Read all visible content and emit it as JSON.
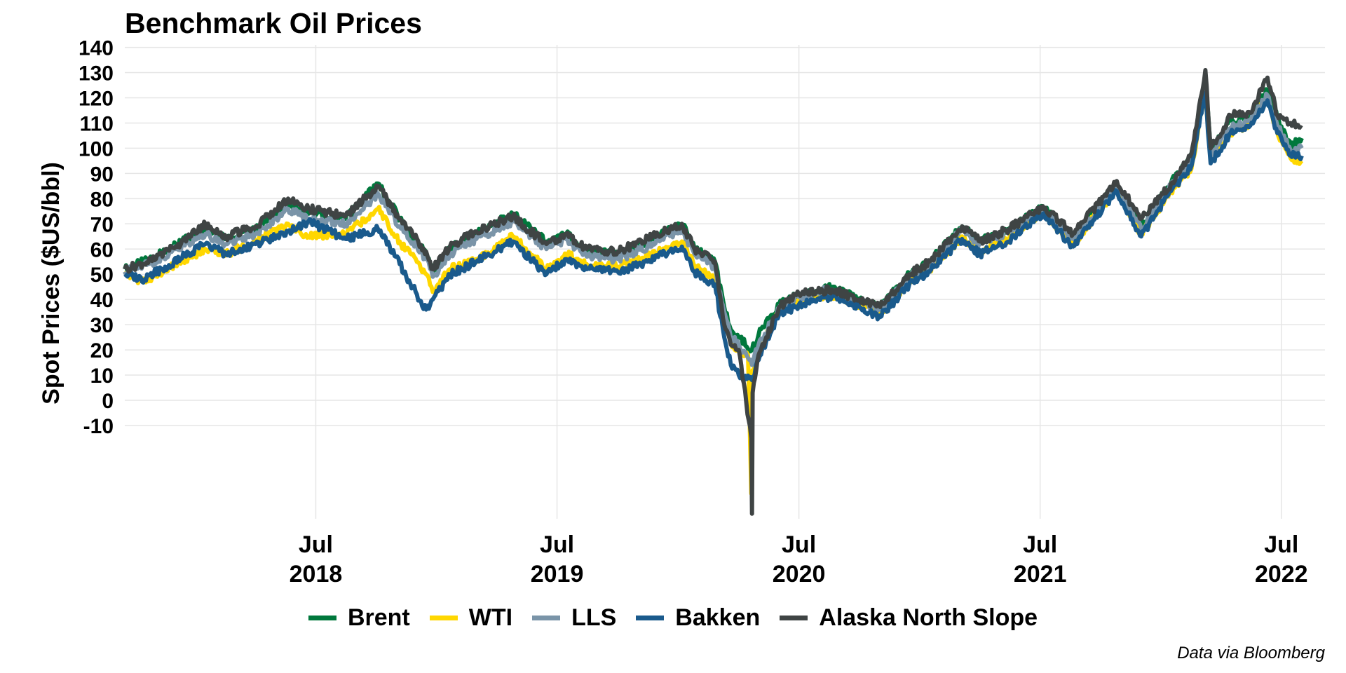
{
  "chart_data": {
    "type": "line",
    "title": "Benchmark Oil Prices",
    "ylabel": "Spot Prices ($US/bbl)",
    "xlabel": "",
    "caption": "Data via Bloomberg",
    "ylim": [
      -47,
      141
    ],
    "xlim": [
      "2017-09-15",
      "2022-09-05"
    ],
    "y_ticks": [
      -10,
      0,
      10,
      20,
      30,
      40,
      50,
      60,
      70,
      80,
      90,
      100,
      110,
      120,
      130,
      140
    ],
    "x_ticks": [
      {
        "date": "2018-07-01",
        "line1": "Jul",
        "line2": "2018"
      },
      {
        "date": "2019-07-01",
        "line1": "Jul",
        "line2": "2019"
      },
      {
        "date": "2020-07-01",
        "line1": "Jul",
        "line2": "2020"
      },
      {
        "date": "2021-07-01",
        "line1": "Jul",
        "line2": "2021"
      },
      {
        "date": "2022-07-01",
        "line1": "Jul",
        "line2": "2022"
      }
    ],
    "grid": true,
    "legend_position": "bottom",
    "series": [
      {
        "name": "Brent",
        "color": "#00783C",
        "points": [
          [
            "2017-09-15",
            52
          ],
          [
            "2017-11-01",
            57
          ],
          [
            "2017-12-01",
            62
          ],
          [
            "2018-01-15",
            68
          ],
          [
            "2018-02-15",
            64
          ],
          [
            "2018-04-01",
            68
          ],
          [
            "2018-05-20",
            78
          ],
          [
            "2018-06-20",
            74
          ],
          [
            "2018-08-15",
            72
          ],
          [
            "2018-10-03",
            86
          ],
          [
            "2018-11-05",
            72
          ],
          [
            "2018-12-15",
            58
          ],
          [
            "2018-12-25",
            51
          ],
          [
            "2019-01-20",
            60
          ],
          [
            "2019-03-01",
            66
          ],
          [
            "2019-04-25",
            74
          ],
          [
            "2019-06-15",
            63
          ],
          [
            "2019-07-15",
            66
          ],
          [
            "2019-08-15",
            59
          ],
          [
            "2019-10-01",
            58
          ],
          [
            "2019-11-15",
            63
          ],
          [
            "2020-01-06",
            70
          ],
          [
            "2020-01-25",
            60
          ],
          [
            "2020-02-25",
            55
          ],
          [
            "2020-03-10",
            37
          ],
          [
            "2020-03-20",
            28
          ],
          [
            "2020-04-01",
            25
          ],
          [
            "2020-04-21",
            20
          ],
          [
            "2020-05-01",
            26
          ],
          [
            "2020-06-01",
            38
          ],
          [
            "2020-07-01",
            42
          ],
          [
            "2020-08-20",
            45
          ],
          [
            "2020-10-01",
            40
          ],
          [
            "2020-11-01",
            37
          ],
          [
            "2020-12-15",
            50
          ],
          [
            "2021-01-15",
            55
          ],
          [
            "2021-03-05",
            69
          ],
          [
            "2021-04-01",
            63
          ],
          [
            "2021-05-15",
            68
          ],
          [
            "2021-07-05",
            77
          ],
          [
            "2021-08-20",
            65
          ],
          [
            "2021-10-25",
            86
          ],
          [
            "2021-12-01",
            69
          ],
          [
            "2022-01-15",
            86
          ],
          [
            "2022-02-15",
            98
          ],
          [
            "2022-03-08",
            128
          ],
          [
            "2022-03-16",
            98
          ],
          [
            "2022-04-15",
            111
          ],
          [
            "2022-05-15",
            112
          ],
          [
            "2022-06-10",
            123
          ],
          [
            "2022-06-25",
            112
          ],
          [
            "2022-07-15",
            101
          ],
          [
            "2022-08-01",
            104
          ]
        ]
      },
      {
        "name": "WTI",
        "color": "#FFD700",
        "points": [
          [
            "2017-09-15",
            50
          ],
          [
            "2017-10-15",
            47
          ],
          [
            "2017-11-15",
            52
          ],
          [
            "2018-01-15",
            60
          ],
          [
            "2018-02-15",
            58
          ],
          [
            "2018-04-01",
            63
          ],
          [
            "2018-05-20",
            70
          ],
          [
            "2018-06-20",
            65
          ],
          [
            "2018-08-15",
            66
          ],
          [
            "2018-10-03",
            76
          ],
          [
            "2018-11-05",
            63
          ],
          [
            "2018-12-15",
            50
          ],
          [
            "2018-12-25",
            43
          ],
          [
            "2019-01-20",
            52
          ],
          [
            "2019-03-01",
            56
          ],
          [
            "2019-04-25",
            65
          ],
          [
            "2019-06-15",
            52
          ],
          [
            "2019-07-15",
            58
          ],
          [
            "2019-08-15",
            54
          ],
          [
            "2019-10-01",
            53
          ],
          [
            "2019-11-15",
            57
          ],
          [
            "2020-01-06",
            63
          ],
          [
            "2020-01-25",
            53
          ],
          [
            "2020-02-25",
            48
          ],
          [
            "2020-03-10",
            32
          ],
          [
            "2020-03-20",
            23
          ],
          [
            "2020-04-01",
            20
          ],
          [
            "2020-04-15",
            18
          ],
          [
            "2020-04-20",
            -37
          ],
          [
            "2020-04-22",
            12
          ],
          [
            "2020-05-01",
            19
          ],
          [
            "2020-06-01",
            36
          ],
          [
            "2020-07-01",
            40
          ],
          [
            "2020-08-20",
            42
          ],
          [
            "2020-10-01",
            38
          ],
          [
            "2020-11-01",
            35
          ],
          [
            "2020-12-15",
            47
          ],
          [
            "2021-01-15",
            52
          ],
          [
            "2021-03-05",
            65
          ],
          [
            "2021-04-01",
            59
          ],
          [
            "2021-05-15",
            64
          ],
          [
            "2021-07-05",
            75
          ],
          [
            "2021-08-20",
            62
          ],
          [
            "2021-10-25",
            84
          ],
          [
            "2021-12-01",
            66
          ],
          [
            "2022-01-15",
            83
          ],
          [
            "2022-02-15",
            92
          ],
          [
            "2022-03-08",
            123
          ],
          [
            "2022-03-16",
            95
          ],
          [
            "2022-04-15",
            106
          ],
          [
            "2022-05-15",
            110
          ],
          [
            "2022-06-10",
            120
          ],
          [
            "2022-06-25",
            106
          ],
          [
            "2022-07-15",
            96
          ],
          [
            "2022-08-01",
            95
          ]
        ]
      },
      {
        "name": "LLS",
        "color": "#7A94A8",
        "points": [
          [
            "2017-09-15",
            51
          ],
          [
            "2017-11-01",
            55
          ],
          [
            "2017-12-01",
            60
          ],
          [
            "2018-01-15",
            66
          ],
          [
            "2018-02-15",
            62
          ],
          [
            "2018-04-01",
            66
          ],
          [
            "2018-05-20",
            76
          ],
          [
            "2018-06-20",
            72
          ],
          [
            "2018-08-15",
            70
          ],
          [
            "2018-10-03",
            82
          ],
          [
            "2018-11-05",
            69
          ],
          [
            "2018-12-15",
            56
          ],
          [
            "2018-12-25",
            49
          ],
          [
            "2019-01-20",
            58
          ],
          [
            "2019-03-01",
            64
          ],
          [
            "2019-04-25",
            71
          ],
          [
            "2019-06-15",
            60
          ],
          [
            "2019-07-15",
            64
          ],
          [
            "2019-08-15",
            57
          ],
          [
            "2019-10-01",
            56
          ],
          [
            "2019-11-15",
            61
          ],
          [
            "2020-01-06",
            68
          ],
          [
            "2020-01-25",
            58
          ],
          [
            "2020-02-25",
            53
          ],
          [
            "2020-03-10",
            35
          ],
          [
            "2020-03-20",
            25
          ],
          [
            "2020-04-01",
            22
          ],
          [
            "2020-04-21",
            14
          ],
          [
            "2020-05-01",
            22
          ],
          [
            "2020-06-01",
            37
          ],
          [
            "2020-07-01",
            41
          ],
          [
            "2020-08-20",
            44
          ],
          [
            "2020-10-01",
            39
          ],
          [
            "2020-11-01",
            36
          ],
          [
            "2020-12-15",
            49
          ],
          [
            "2021-01-15",
            54
          ],
          [
            "2021-03-05",
            68
          ],
          [
            "2021-04-01",
            62
          ],
          [
            "2021-05-15",
            67
          ],
          [
            "2021-07-05",
            76
          ],
          [
            "2021-08-20",
            64
          ],
          [
            "2021-10-25",
            85
          ],
          [
            "2021-12-01",
            68
          ],
          [
            "2022-01-15",
            85
          ],
          [
            "2022-02-15",
            95
          ],
          [
            "2022-03-08",
            125
          ],
          [
            "2022-03-16",
            97
          ],
          [
            "2022-04-15",
            108
          ],
          [
            "2022-05-15",
            111
          ],
          [
            "2022-06-10",
            121
          ],
          [
            "2022-06-25",
            109
          ],
          [
            "2022-07-15",
            99
          ],
          [
            "2022-08-01",
            100
          ]
        ]
      },
      {
        "name": "Bakken",
        "color": "#1A5A8C",
        "points": [
          [
            "2017-09-15",
            50
          ],
          [
            "2017-10-15",
            48
          ],
          [
            "2017-11-15",
            53
          ],
          [
            "2018-01-15",
            62
          ],
          [
            "2018-02-15",
            58
          ],
          [
            "2018-04-01",
            62
          ],
          [
            "2018-05-20",
            67
          ],
          [
            "2018-06-20",
            71
          ],
          [
            "2018-08-15",
            64
          ],
          [
            "2018-10-03",
            68
          ],
          [
            "2018-11-05",
            54
          ],
          [
            "2018-12-01",
            42
          ],
          [
            "2018-12-15",
            36
          ],
          [
            "2018-12-25",
            40
          ],
          [
            "2019-01-20",
            50
          ],
          [
            "2019-03-01",
            55
          ],
          [
            "2019-04-25",
            63
          ],
          [
            "2019-06-15",
            50
          ],
          [
            "2019-07-15",
            56
          ],
          [
            "2019-08-15",
            52
          ],
          [
            "2019-10-01",
            51
          ],
          [
            "2019-11-15",
            55
          ],
          [
            "2020-01-06",
            61
          ],
          [
            "2020-01-25",
            51
          ],
          [
            "2020-02-25",
            46
          ],
          [
            "2020-03-10",
            25
          ],
          [
            "2020-03-20",
            14
          ],
          [
            "2020-04-01",
            10
          ],
          [
            "2020-04-21",
            8
          ],
          [
            "2020-05-01",
            16
          ],
          [
            "2020-06-01",
            34
          ],
          [
            "2020-07-01",
            38
          ],
          [
            "2020-08-20",
            41
          ],
          [
            "2020-10-01",
            37
          ],
          [
            "2020-11-01",
            33
          ],
          [
            "2020-12-15",
            46
          ],
          [
            "2021-01-15",
            51
          ],
          [
            "2021-03-05",
            64
          ],
          [
            "2021-04-01",
            58
          ],
          [
            "2021-05-15",
            63
          ],
          [
            "2021-07-05",
            74
          ],
          [
            "2021-08-20",
            61
          ],
          [
            "2021-10-25",
            83
          ],
          [
            "2021-12-01",
            65
          ],
          [
            "2022-01-15",
            83
          ],
          [
            "2022-02-15",
            93
          ],
          [
            "2022-03-08",
            122
          ],
          [
            "2022-03-16",
            94
          ],
          [
            "2022-04-15",
            106
          ],
          [
            "2022-05-15",
            109
          ],
          [
            "2022-06-10",
            119
          ],
          [
            "2022-06-25",
            106
          ],
          [
            "2022-07-15",
            97
          ],
          [
            "2022-08-01",
            97
          ]
        ]
      },
      {
        "name": "Alaska North Slope",
        "color": "#3F4444",
        "points": [
          [
            "2017-09-15",
            52
          ],
          [
            "2017-11-01",
            56
          ],
          [
            "2017-12-01",
            61
          ],
          [
            "2018-01-15",
            70
          ],
          [
            "2018-02-15",
            65
          ],
          [
            "2018-04-01",
            69
          ],
          [
            "2018-05-20",
            80
          ],
          [
            "2018-06-20",
            76
          ],
          [
            "2018-08-15",
            73
          ],
          [
            "2018-10-03",
            85
          ],
          [
            "2018-11-05",
            72
          ],
          [
            "2018-12-15",
            59
          ],
          [
            "2018-12-25",
            52
          ],
          [
            "2019-01-20",
            61
          ],
          [
            "2019-03-01",
            67
          ],
          [
            "2019-04-25",
            73
          ],
          [
            "2019-06-15",
            62
          ],
          [
            "2019-07-15",
            66
          ],
          [
            "2019-08-15",
            60
          ],
          [
            "2019-10-01",
            59
          ],
          [
            "2019-11-15",
            64
          ],
          [
            "2020-01-06",
            70
          ],
          [
            "2020-01-25",
            60
          ],
          [
            "2020-02-25",
            55
          ],
          [
            "2020-03-10",
            30
          ],
          [
            "2020-03-20",
            22
          ],
          [
            "2020-04-01",
            20
          ],
          [
            "2020-04-20",
            -15
          ],
          [
            "2020-04-21",
            -45
          ],
          [
            "2020-04-22",
            3
          ],
          [
            "2020-05-01",
            18
          ],
          [
            "2020-06-01",
            37
          ],
          [
            "2020-07-01",
            42
          ],
          [
            "2020-08-20",
            44
          ],
          [
            "2020-10-01",
            40
          ],
          [
            "2020-11-01",
            37
          ],
          [
            "2020-12-15",
            50
          ],
          [
            "2021-01-15",
            55
          ],
          [
            "2021-03-05",
            69
          ],
          [
            "2021-04-01",
            63
          ],
          [
            "2021-05-15",
            68
          ],
          [
            "2021-07-05",
            77
          ],
          [
            "2021-08-20",
            66
          ],
          [
            "2021-10-25",
            87
          ],
          [
            "2021-12-01",
            72
          ],
          [
            "2022-01-15",
            86
          ],
          [
            "2022-02-15",
            98
          ],
          [
            "2022-03-08",
            131
          ],
          [
            "2022-03-16",
            100
          ],
          [
            "2022-04-15",
            113
          ],
          [
            "2022-05-15",
            114
          ],
          [
            "2022-06-10",
            128
          ],
          [
            "2022-06-25",
            113
          ],
          [
            "2022-07-15",
            110
          ],
          [
            "2022-08-01",
            108
          ]
        ]
      }
    ]
  }
}
